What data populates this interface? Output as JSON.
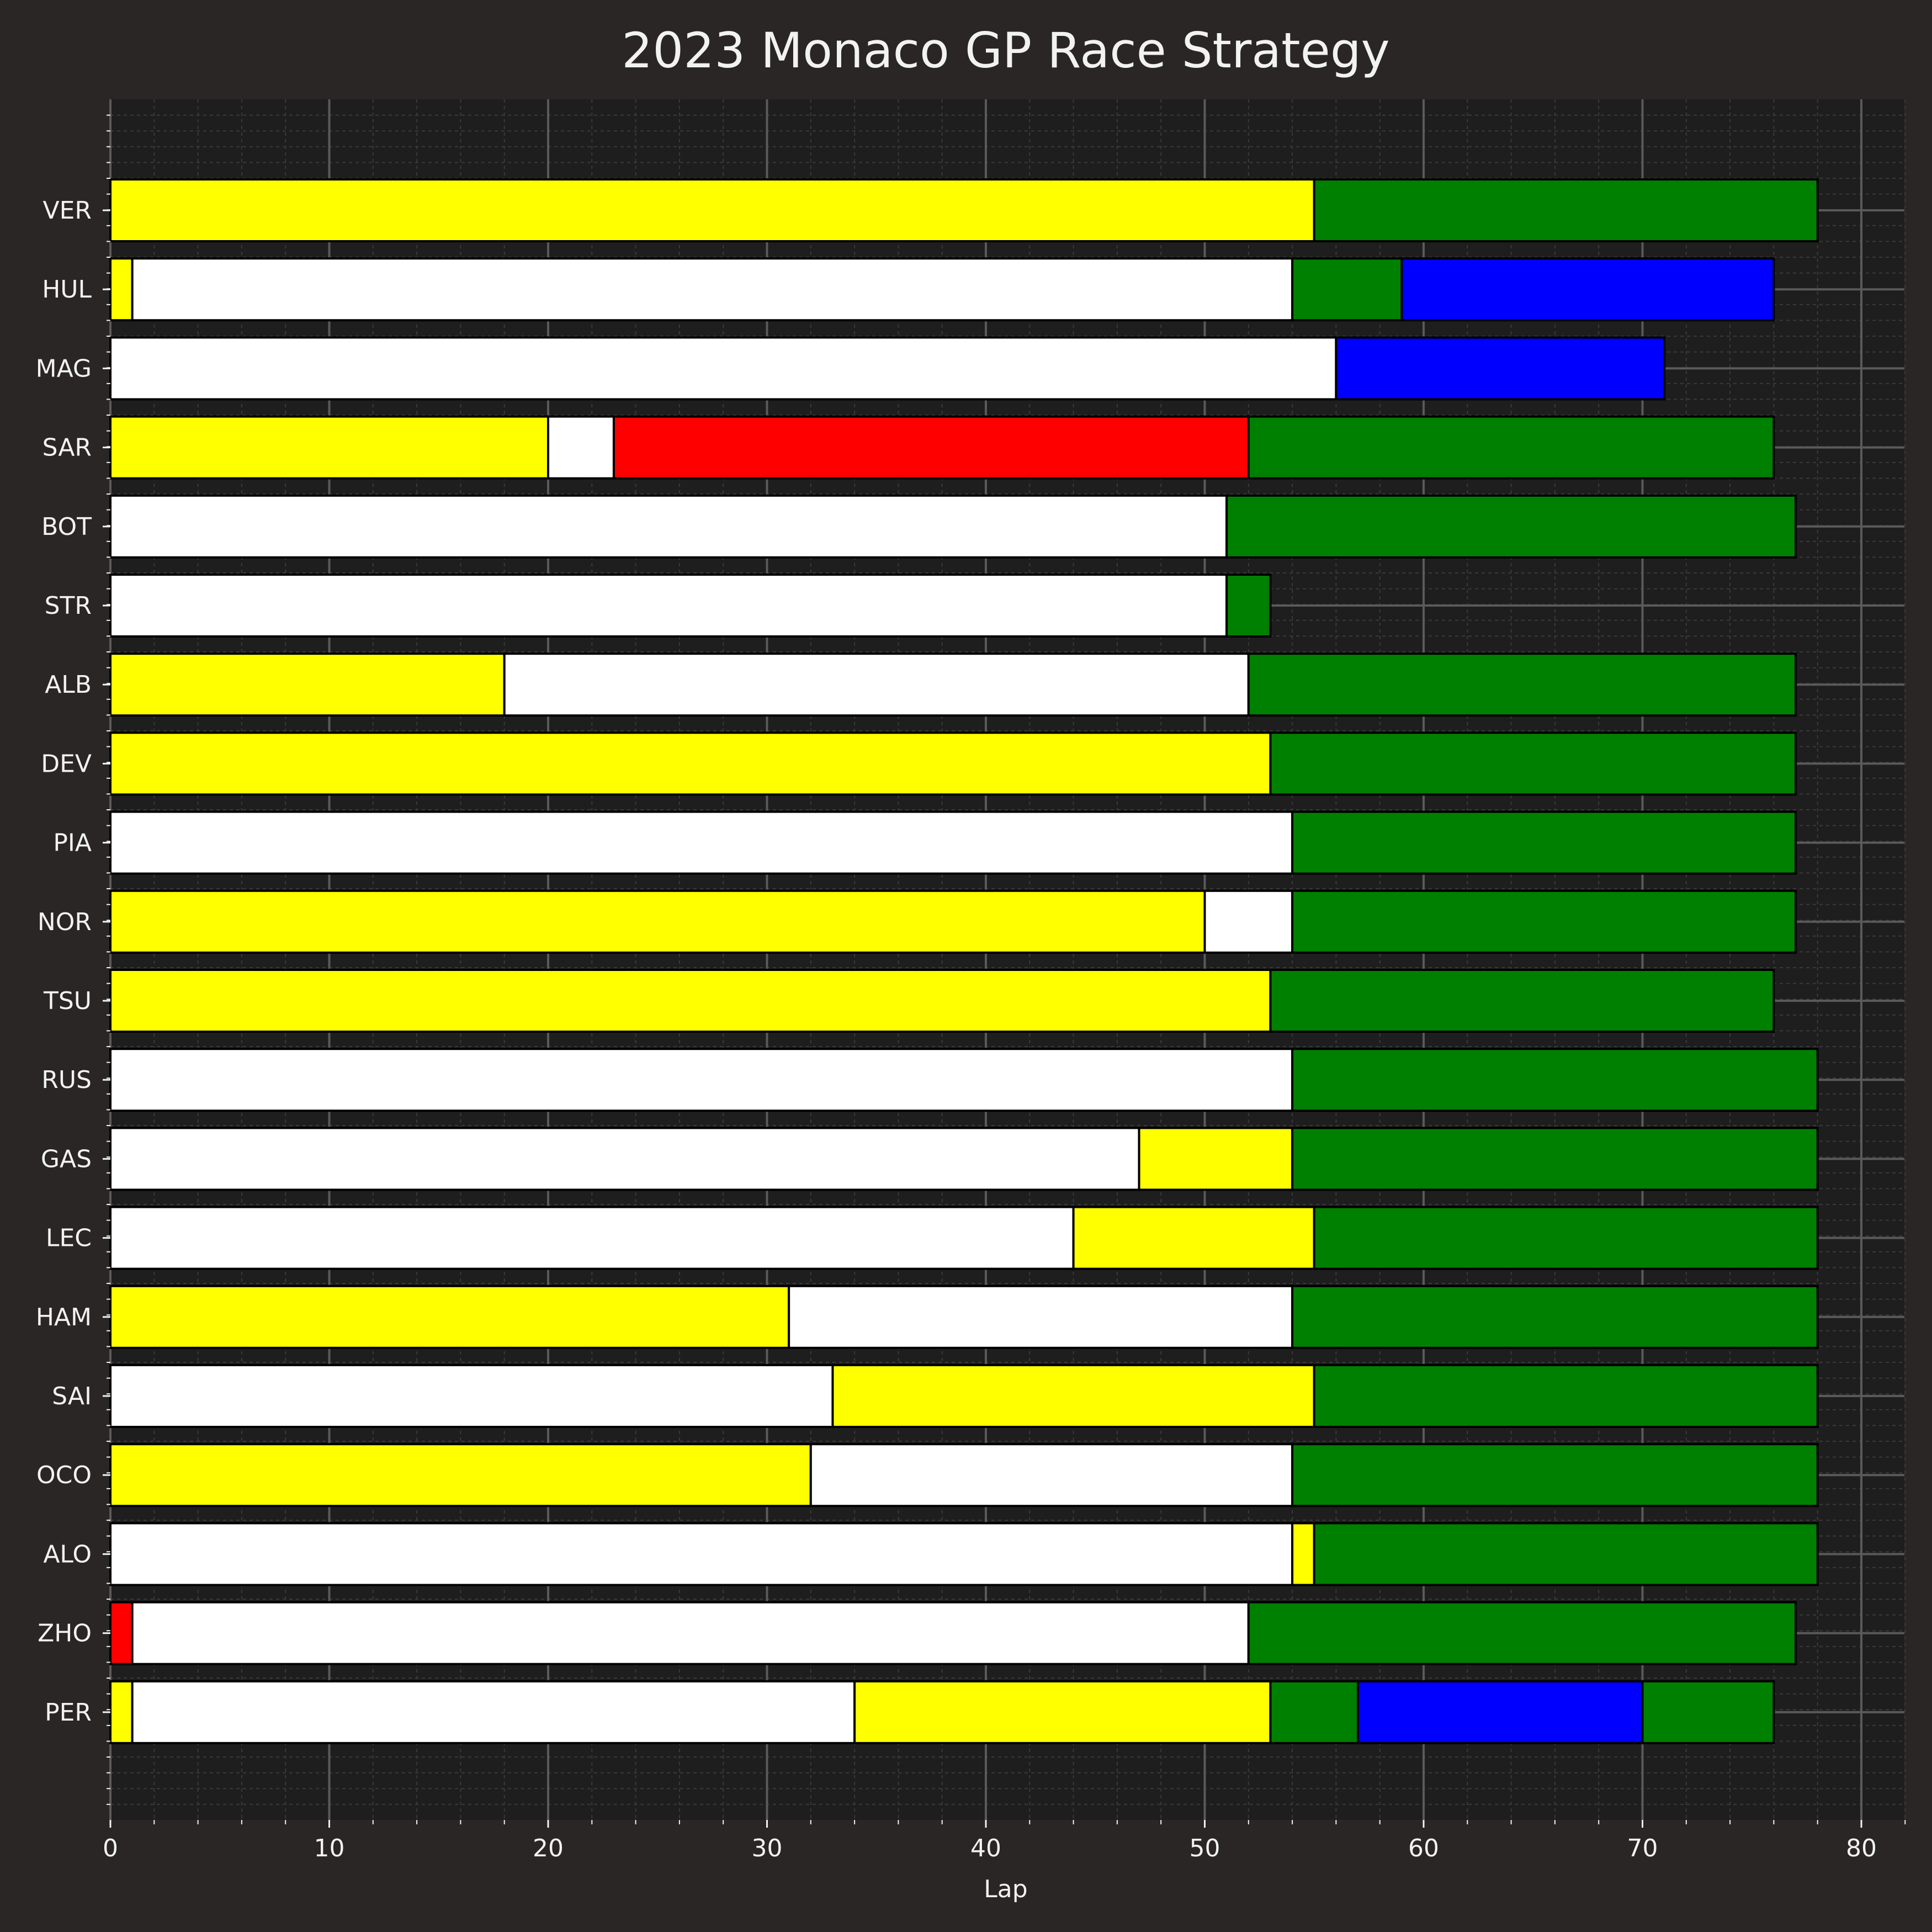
{
  "chart_data": {
    "type": "bar",
    "orientation": "horizontal-stacked",
    "title": "2023 Monaco GP Race Strategy",
    "xlabel": "Lap",
    "ylabel": "",
    "xlim": [
      0,
      82
    ],
    "xticks": [
      0,
      10,
      20,
      30,
      40,
      50,
      60,
      70,
      80
    ],
    "grid": true,
    "compound_colors": {
      "SOFT": "#ff0000",
      "MEDIUM": "#ffff00",
      "HARD": "#ffffff",
      "INTERMEDIATE": "#008000",
      "WET": "#0000ff"
    },
    "drivers": [
      {
        "driver": "VER",
        "stints": [
          {
            "compound": "MEDIUM",
            "start": 0,
            "end": 55
          },
          {
            "compound": "INTERMEDIATE",
            "start": 55,
            "end": 78
          }
        ]
      },
      {
        "driver": "HUL",
        "stints": [
          {
            "compound": "MEDIUM",
            "start": 0,
            "end": 1
          },
          {
            "compound": "HARD",
            "start": 1,
            "end": 54
          },
          {
            "compound": "INTERMEDIATE",
            "start": 54,
            "end": 59
          },
          {
            "compound": "WET",
            "start": 59,
            "end": 76
          }
        ]
      },
      {
        "driver": "MAG",
        "stints": [
          {
            "compound": "HARD",
            "start": 0,
            "end": 56
          },
          {
            "compound": "WET",
            "start": 56,
            "end": 71
          }
        ]
      },
      {
        "driver": "SAR",
        "stints": [
          {
            "compound": "MEDIUM",
            "start": 0,
            "end": 20
          },
          {
            "compound": "HARD",
            "start": 20,
            "end": 23
          },
          {
            "compound": "SOFT",
            "start": 23,
            "end": 52
          },
          {
            "compound": "INTERMEDIATE",
            "start": 52,
            "end": 76
          }
        ]
      },
      {
        "driver": "BOT",
        "stints": [
          {
            "compound": "HARD",
            "start": 0,
            "end": 51
          },
          {
            "compound": "INTERMEDIATE",
            "start": 51,
            "end": 77
          }
        ]
      },
      {
        "driver": "STR",
        "stints": [
          {
            "compound": "HARD",
            "start": 0,
            "end": 51
          },
          {
            "compound": "INTERMEDIATE",
            "start": 51,
            "end": 53
          }
        ]
      },
      {
        "driver": "ALB",
        "stints": [
          {
            "compound": "MEDIUM",
            "start": 0,
            "end": 18
          },
          {
            "compound": "HARD",
            "start": 18,
            "end": 52
          },
          {
            "compound": "INTERMEDIATE",
            "start": 52,
            "end": 77
          }
        ]
      },
      {
        "driver": "DEV",
        "stints": [
          {
            "compound": "MEDIUM",
            "start": 0,
            "end": 53
          },
          {
            "compound": "INTERMEDIATE",
            "start": 53,
            "end": 77
          }
        ]
      },
      {
        "driver": "PIA",
        "stints": [
          {
            "compound": "HARD",
            "start": 0,
            "end": 54
          },
          {
            "compound": "INTERMEDIATE",
            "start": 54,
            "end": 77
          }
        ]
      },
      {
        "driver": "NOR",
        "stints": [
          {
            "compound": "MEDIUM",
            "start": 0,
            "end": 50
          },
          {
            "compound": "HARD",
            "start": 50,
            "end": 54
          },
          {
            "compound": "INTERMEDIATE",
            "start": 54,
            "end": 77
          }
        ]
      },
      {
        "driver": "TSU",
        "stints": [
          {
            "compound": "MEDIUM",
            "start": 0,
            "end": 53
          },
          {
            "compound": "INTERMEDIATE",
            "start": 53,
            "end": 76
          }
        ]
      },
      {
        "driver": "RUS",
        "stints": [
          {
            "compound": "HARD",
            "start": 0,
            "end": 54
          },
          {
            "compound": "INTERMEDIATE",
            "start": 54,
            "end": 78
          }
        ]
      },
      {
        "driver": "GAS",
        "stints": [
          {
            "compound": "HARD",
            "start": 0,
            "end": 47
          },
          {
            "compound": "MEDIUM",
            "start": 47,
            "end": 54
          },
          {
            "compound": "INTERMEDIATE",
            "start": 54,
            "end": 78
          }
        ]
      },
      {
        "driver": "LEC",
        "stints": [
          {
            "compound": "HARD",
            "start": 0,
            "end": 44
          },
          {
            "compound": "MEDIUM",
            "start": 44,
            "end": 55
          },
          {
            "compound": "INTERMEDIATE",
            "start": 55,
            "end": 78
          }
        ]
      },
      {
        "driver": "HAM",
        "stints": [
          {
            "compound": "MEDIUM",
            "start": 0,
            "end": 31
          },
          {
            "compound": "HARD",
            "start": 31,
            "end": 54
          },
          {
            "compound": "INTERMEDIATE",
            "start": 54,
            "end": 78
          }
        ]
      },
      {
        "driver": "SAI",
        "stints": [
          {
            "compound": "HARD",
            "start": 0,
            "end": 33
          },
          {
            "compound": "MEDIUM",
            "start": 33,
            "end": 55
          },
          {
            "compound": "INTERMEDIATE",
            "start": 55,
            "end": 78
          }
        ]
      },
      {
        "driver": "OCO",
        "stints": [
          {
            "compound": "MEDIUM",
            "start": 0,
            "end": 32
          },
          {
            "compound": "HARD",
            "start": 32,
            "end": 54
          },
          {
            "compound": "INTERMEDIATE",
            "start": 54,
            "end": 78
          }
        ]
      },
      {
        "driver": "ALO",
        "stints": [
          {
            "compound": "HARD",
            "start": 0,
            "end": 54
          },
          {
            "compound": "MEDIUM",
            "start": 54,
            "end": 55
          },
          {
            "compound": "INTERMEDIATE",
            "start": 55,
            "end": 78
          }
        ]
      },
      {
        "driver": "ZHO",
        "stints": [
          {
            "compound": "SOFT",
            "start": 0,
            "end": 1
          },
          {
            "compound": "HARD",
            "start": 1,
            "end": 52
          },
          {
            "compound": "INTERMEDIATE",
            "start": 52,
            "end": 77
          }
        ]
      },
      {
        "driver": "PER",
        "stints": [
          {
            "compound": "MEDIUM",
            "start": 0,
            "end": 1
          },
          {
            "compound": "HARD",
            "start": 1,
            "end": 34
          },
          {
            "compound": "MEDIUM",
            "start": 34,
            "end": 53
          },
          {
            "compound": "INTERMEDIATE",
            "start": 53,
            "end": 57
          },
          {
            "compound": "WET",
            "start": 57,
            "end": 70
          },
          {
            "compound": "INTERMEDIATE",
            "start": 70,
            "end": 76
          }
        ]
      }
    ]
  }
}
